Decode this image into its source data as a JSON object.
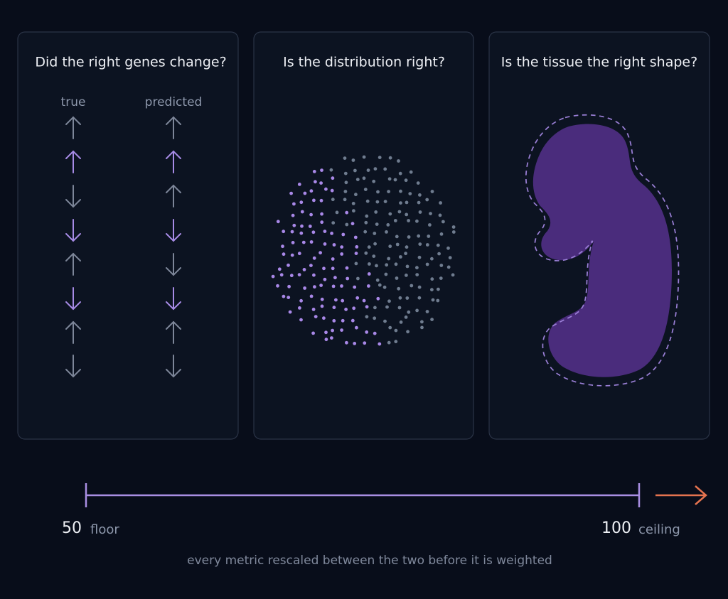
{
  "panels": [
    {
      "title": "Did the right genes change?",
      "columns": [
        "true",
        "predicted"
      ]
    },
    {
      "title": "Is the distribution right?"
    },
    {
      "title": "Is the tissue the right shape?"
    }
  ],
  "scale": {
    "min": {
      "value": "50",
      "label": "floor"
    },
    "max": {
      "value": "100",
      "label": "ceiling"
    },
    "caption": "every metric rescaled between the two before it is weighted"
  }
}
